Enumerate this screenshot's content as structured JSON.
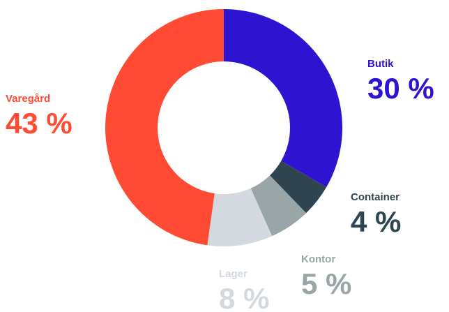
{
  "chart_data": {
    "type": "donut",
    "categories": [
      "Butik",
      "Container",
      "Kontor",
      "Lager",
      "Varegård"
    ],
    "values": [
      30,
      4,
      5,
      8,
      43
    ],
    "value_labels": [
      "30 %",
      "4 %",
      "5 %",
      "8 %",
      "43 %"
    ],
    "colors": [
      "#2e14d1",
      "#2f4550",
      "#9aa5a8",
      "#d3d9df",
      "#ff4b33"
    ]
  }
}
